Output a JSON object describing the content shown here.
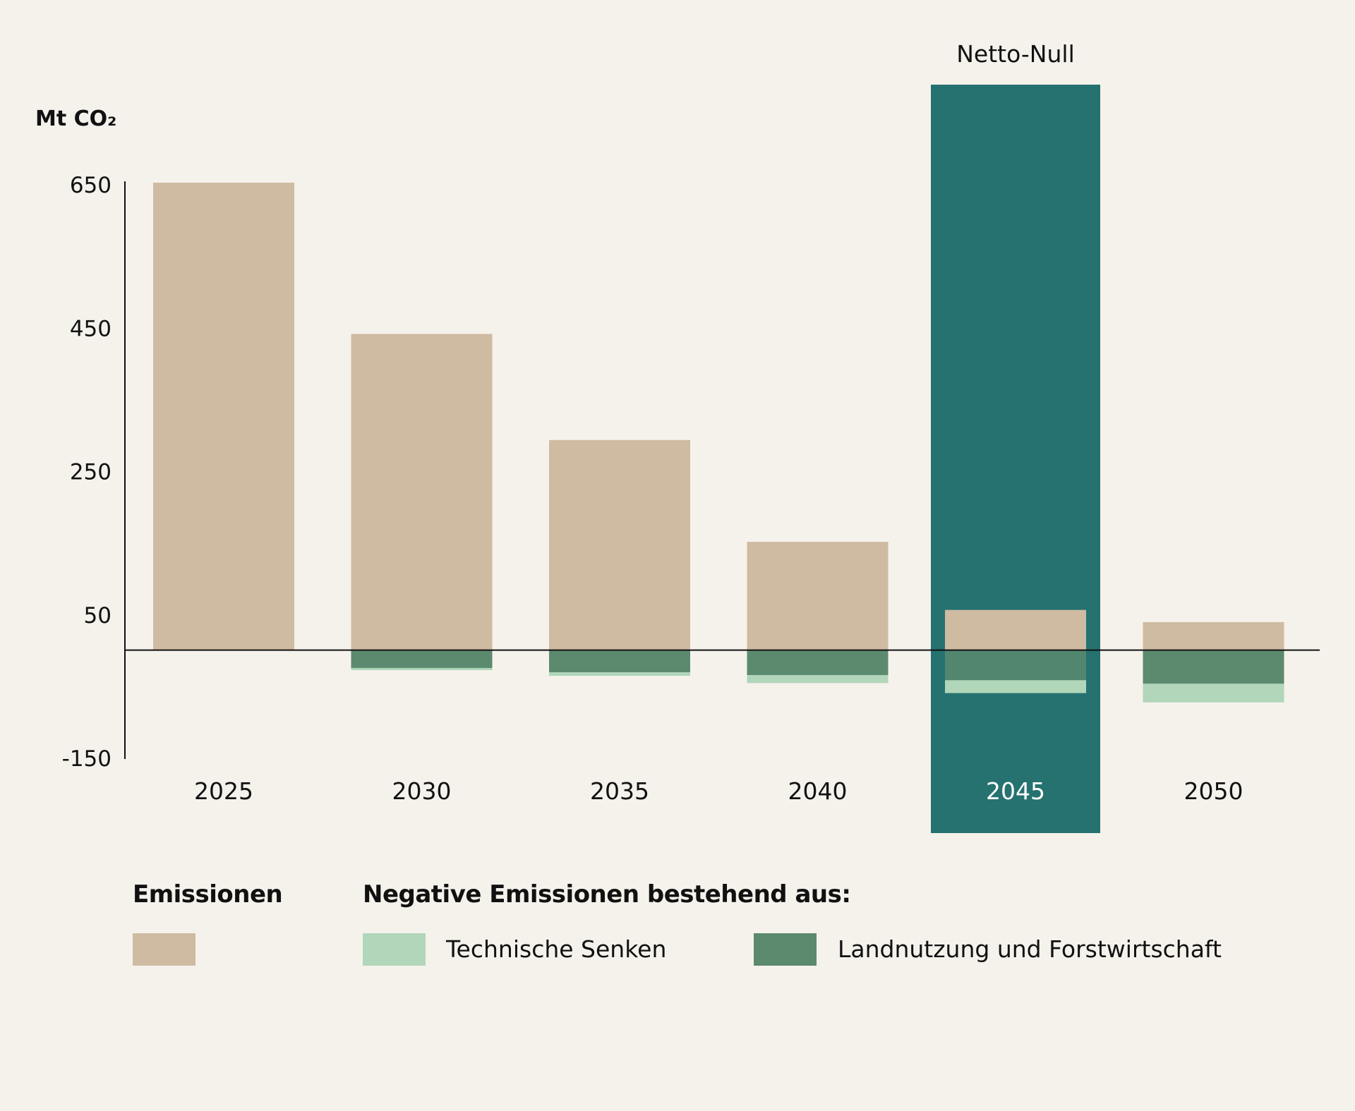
{
  "chart_data": {
    "type": "bar",
    "ylabel": "Mt CO₂",
    "ylim": [
      -150,
      650
    ],
    "yticks": [
      650,
      450,
      250,
      50,
      -150
    ],
    "categories": [
      "2025",
      "2030",
      "2035",
      "2040",
      "2045",
      "2050"
    ],
    "series": [
      {
        "key": "emissions",
        "values": [
          652,
          441,
          293,
          151,
          56,
          39
        ]
      },
      {
        "key": "land_use",
        "values": [
          0,
          -25,
          -31,
          -35,
          -42,
          -47
        ]
      },
      {
        "key": "technical_sinks",
        "values": [
          0,
          -3,
          -5,
          -11,
          -18,
          -26
        ]
      }
    ],
    "highlight": {
      "category": "2045",
      "label": "Netto-Null"
    },
    "colors": {
      "background": "#f5f2ec",
      "emissions": "#cfbba2",
      "land_use": "#5c8a6e",
      "technical_sinks": "#b1d6b9",
      "highlight": "#257270",
      "axis": "#111111"
    }
  },
  "legend": {
    "emissions_heading": "Emissionen",
    "negative_heading": "Negative Emissionen bestehend aus:",
    "technical_sinks_label": "Technische Senken",
    "land_use_label": "Landnutzung und Forstwirtschaft"
  }
}
